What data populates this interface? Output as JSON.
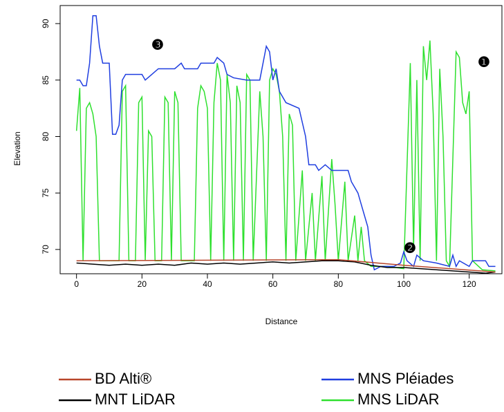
{
  "chart_data": {
    "type": "line",
    "xlabel": "Distance",
    "ylabel": "Elevation",
    "xlim": [
      -5,
      130
    ],
    "ylim": [
      67.85,
      91.6
    ],
    "xticks": [
      0,
      20,
      40,
      60,
      80,
      100,
      120
    ],
    "yticks": [
      70,
      75,
      80,
      85,
      90
    ],
    "annotations": [
      "❶",
      "❷",
      "❸"
    ],
    "series": [
      {
        "name": "BD Alti®",
        "color": "#b8452a",
        "x": [
          0,
          80,
          100,
          128
        ],
        "values": [
          69,
          69.1,
          68.6,
          68.0
        ]
      },
      {
        "name": "MNT LiDAR",
        "color": "#000000",
        "x": [
          0,
          5,
          10,
          15,
          20,
          25,
          30,
          35,
          40,
          45,
          50,
          55,
          60,
          65,
          70,
          75,
          80,
          85,
          90,
          95,
          100,
          105,
          110,
          115,
          120,
          125,
          128
        ],
        "values": [
          68.8,
          68.7,
          68.6,
          68.7,
          68.6,
          68.7,
          68.6,
          68.8,
          68.7,
          68.8,
          68.7,
          68.8,
          68.9,
          68.8,
          68.9,
          69.0,
          69.0,
          68.9,
          68.6,
          68.4,
          68.4,
          68.3,
          68.2,
          68.1,
          68.0,
          67.9,
          68.0
        ]
      },
      {
        "name": "MNS Pléiades",
        "color": "#1f3ee0",
        "x": [
          0,
          1,
          2,
          3,
          4,
          5,
          6,
          7,
          8,
          10,
          11,
          12,
          13,
          14,
          15,
          20,
          21,
          23,
          25,
          30,
          32,
          33,
          37,
          38,
          42,
          43,
          45,
          46,
          48,
          52,
          56,
          57,
          58,
          59,
          60,
          61,
          62,
          64,
          68,
          70,
          71,
          73,
          74,
          76,
          78,
          83,
          84,
          86,
          87,
          88,
          89,
          90,
          91,
          93,
          97,
          99,
          100,
          101,
          103,
          104,
          106,
          110,
          114,
          115,
          116,
          117,
          120,
          121,
          125,
          126,
          128
        ],
        "values": [
          85,
          85,
          84.5,
          84.5,
          86.5,
          90.7,
          90.7,
          88,
          86.5,
          86.5,
          80.2,
          80.2,
          81,
          85,
          85.5,
          85.5,
          85,
          85.5,
          86,
          86,
          86.5,
          86,
          86,
          86.5,
          86.5,
          87,
          86.5,
          85.5,
          85.2,
          85,
          85,
          86.5,
          88,
          87.5,
          85,
          86,
          84,
          83,
          82.5,
          80,
          77.5,
          77.5,
          77,
          77.5,
          77,
          77,
          76,
          75,
          74,
          73,
          72,
          69.5,
          68.2,
          68.5,
          68.5,
          68.8,
          69.8,
          69,
          68.5,
          69.5,
          69,
          68.8,
          68.5,
          69.5,
          68.5,
          69,
          68.5,
          69,
          69,
          68.5,
          68.5
        ]
      },
      {
        "name": "MNS LiDAR",
        "color": "#2ee02e",
        "x": [
          0,
          1,
          2,
          3,
          4,
          5,
          6,
          7,
          13,
          14,
          15,
          16,
          18,
          19,
          20,
          21,
          22,
          23,
          24,
          26,
          27,
          28,
          29,
          30,
          31,
          32,
          36,
          37,
          38,
          39,
          40,
          41,
          42,
          43,
          44,
          45,
          46,
          47,
          48,
          49,
          50,
          51,
          52,
          53,
          54,
          56,
          57,
          58,
          59,
          60,
          61,
          62,
          63,
          64,
          65,
          66,
          67,
          69,
          70,
          72,
          73,
          75,
          76,
          78,
          79,
          80,
          82,
          83,
          85,
          86,
          87,
          88,
          90,
          95,
          100,
          102,
          103,
          104,
          105,
          106,
          107,
          108,
          109,
          110,
          111,
          112,
          113,
          114,
          116,
          117,
          118,
          119,
          120,
          121,
          124,
          128
        ],
        "values": [
          80.5,
          84.3,
          69,
          82.5,
          83,
          82,
          80,
          69,
          69,
          84,
          84.5,
          69,
          69,
          83,
          83.5,
          69,
          80.5,
          80,
          69,
          69,
          83.5,
          83,
          69,
          84,
          83,
          69,
          69,
          82.5,
          84.5,
          84,
          82.5,
          69,
          83,
          86.5,
          85,
          69,
          85.5,
          83,
          69,
          84.5,
          83,
          69,
          85.5,
          85,
          69,
          84,
          80,
          69,
          85,
          86,
          85.5,
          84,
          80,
          69,
          82,
          81,
          69,
          77,
          69,
          75,
          69,
          76.5,
          69,
          78,
          74,
          69,
          76,
          69,
          73,
          69,
          72,
          69,
          68.5,
          68.5,
          68.3,
          86.5,
          70,
          85,
          69,
          88,
          85,
          88.5,
          82,
          69,
          86,
          80,
          69,
          68.5,
          87.5,
          87,
          83,
          82,
          84,
          69,
          68.2,
          68.1
        ]
      }
    ]
  }
}
